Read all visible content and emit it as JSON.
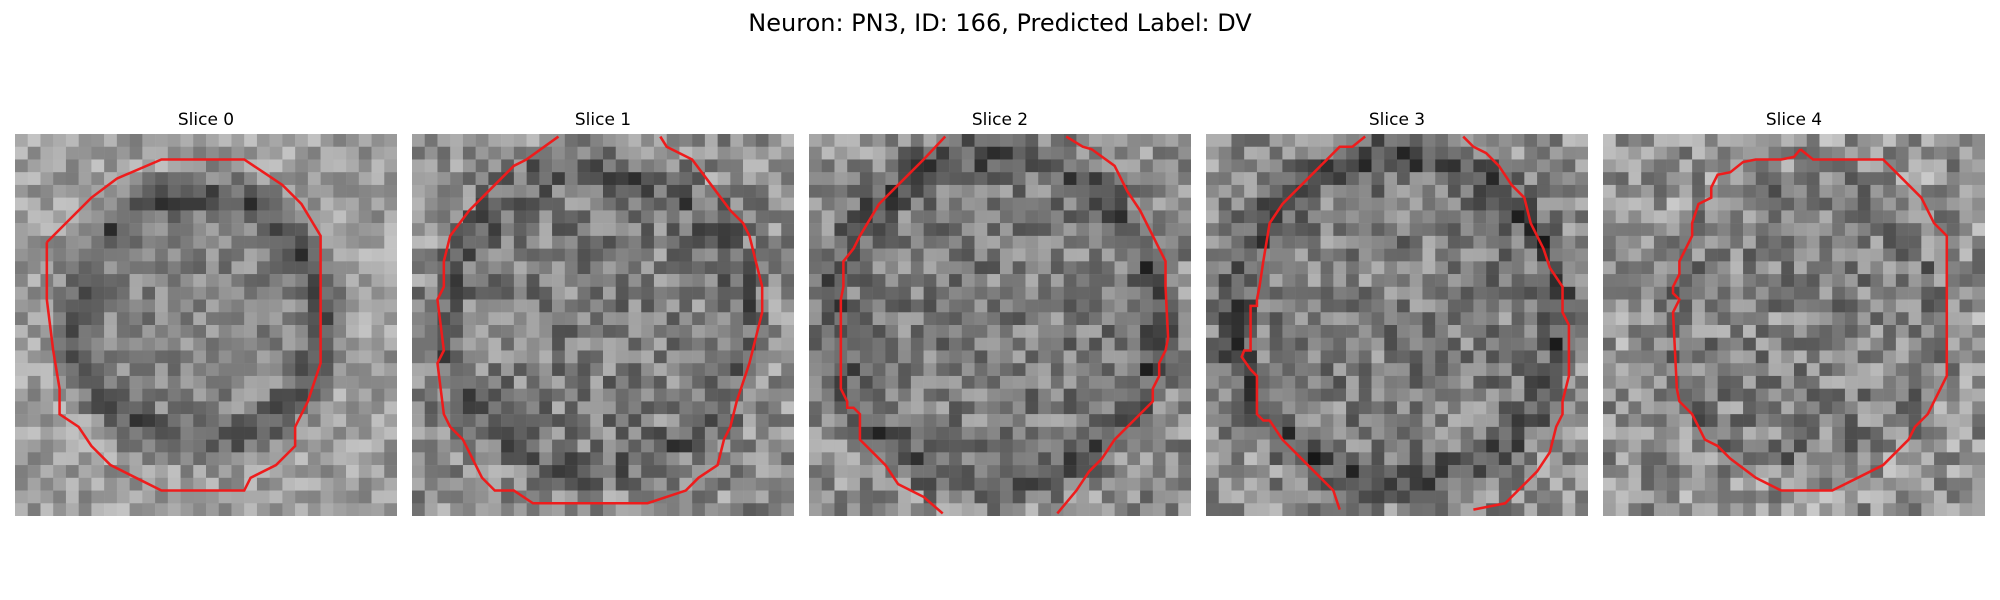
{
  "figure": {
    "title": "Neuron: PN3, ID: 166, Predicted Label: DV",
    "contour_color": "#ee1c1c"
  },
  "panels": [
    {
      "title": "Slice 0"
    },
    {
      "title": "Slice 1"
    },
    {
      "title": "Slice 2"
    },
    {
      "title": "Slice 3"
    },
    {
      "title": "Slice 4"
    }
  ]
}
